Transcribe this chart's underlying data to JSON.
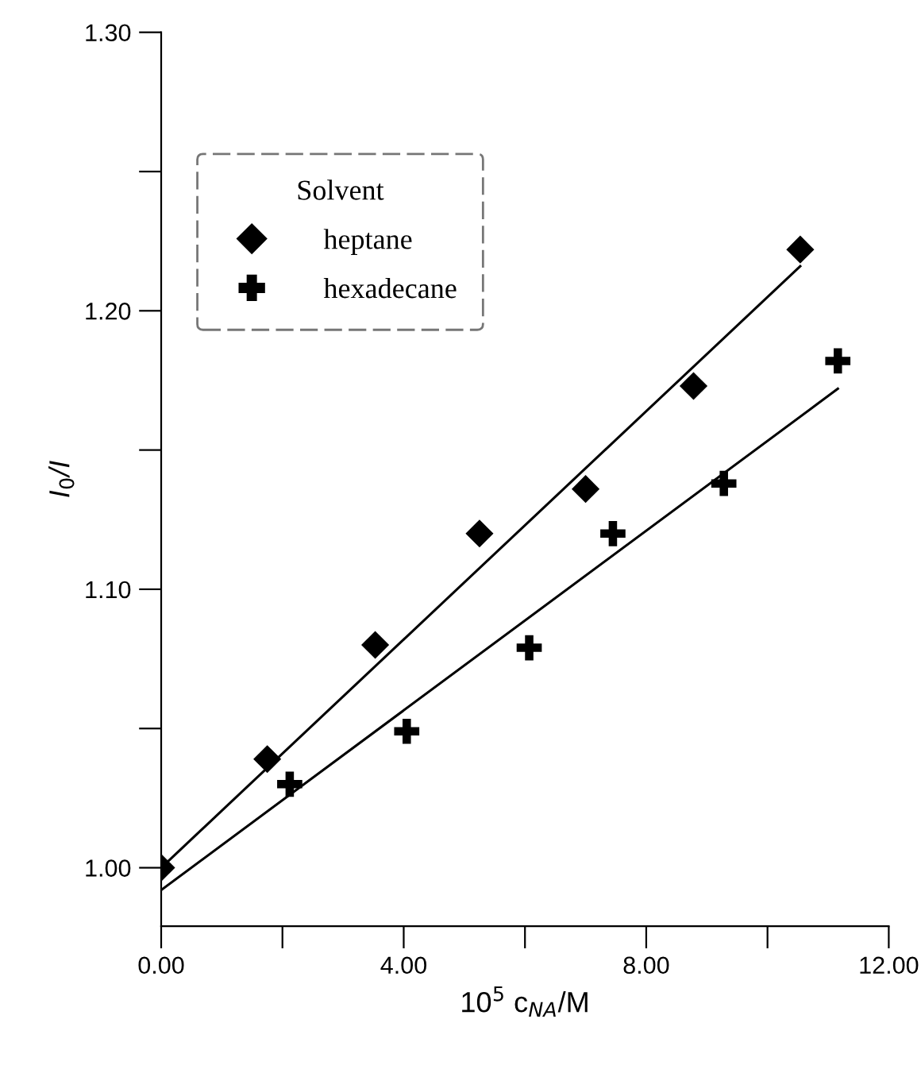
{
  "chart_data": {
    "type": "scatter",
    "xlabel": "10$^{5}$ c$_{NA}$/M",
    "ylabel": "I$_{0}$/I",
    "legend_title": "Solvent",
    "legend": "top left",
    "grid": false,
    "xlim": [
      0,
      12
    ],
    "ylim": [
      0.979,
      1.3
    ],
    "xticks": [
      {
        "value": 0,
        "label": "0.00"
      },
      {
        "value": 2,
        "label": null
      },
      {
        "value": 4,
        "label": "4.00"
      },
      {
        "value": 6,
        "label": null
      },
      {
        "value": 8,
        "label": "8.00"
      },
      {
        "value": 10,
        "label": null
      },
      {
        "value": 12,
        "label": "12.00"
      }
    ],
    "yticks": [
      {
        "value": 1.0,
        "label": "1.00"
      },
      {
        "value": 1.05,
        "label": null
      },
      {
        "value": 1.1,
        "label": "1.10"
      },
      {
        "value": 1.15,
        "label": null
      },
      {
        "value": 1.2,
        "label": "1.20"
      },
      {
        "value": 1.25,
        "label": null
      },
      {
        "value": 1.3,
        "label": "1.30"
      }
    ],
    "series": [
      {
        "name": "heptane",
        "color": "#000000",
        "marker": "diamond",
        "x": [
          0,
          1.75,
          3.53,
          5.25,
          7.0,
          8.78,
          10.54
        ],
        "values": [
          1.0,
          1.039,
          1.08,
          1.12,
          1.136,
          1.173,
          1.222
        ]
      },
      {
        "name": "hexadecane",
        "color": "#000000",
        "marker": "cross",
        "x": [
          2.12,
          4.05,
          6.07,
          7.45,
          9.28,
          11.16
        ],
        "values": [
          1.03,
          1.049,
          1.079,
          1.12,
          1.138,
          1.182
        ]
      },
      {
        "type": "line",
        "color": "#000000",
        "marker": "none",
        "x": [
          0,
          10.54
        ],
        "values": [
          1.0,
          1.216
        ]
      },
      {
        "type": "line",
        "color": "#000000",
        "marker": "none",
        "x": [
          0,
          11.16
        ],
        "values": [
          0.992,
          1.172
        ]
      }
    ]
  }
}
